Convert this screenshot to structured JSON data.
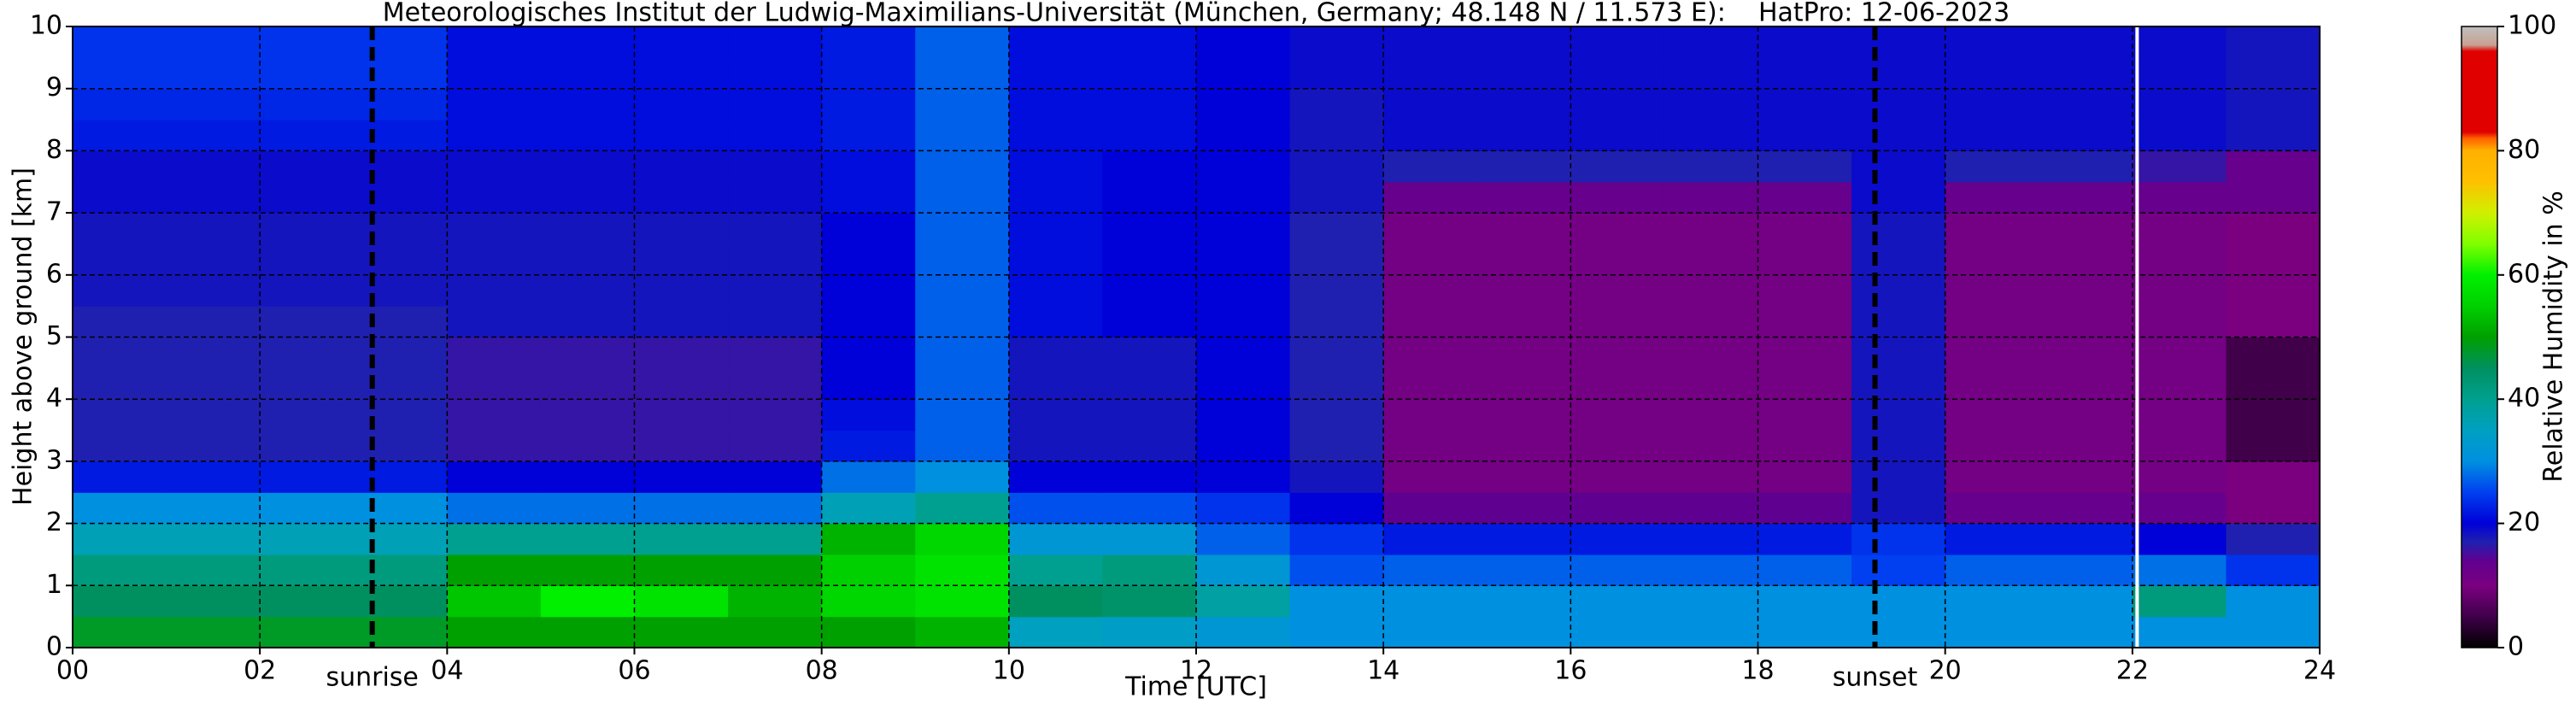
{
  "chart_data": {
    "type": "heatmap",
    "title": "Meteorologisches Institut der Ludwig-Maximilians-Universität (München, Germany; 48.148 N / 11.573 E):    HatPro: 12-06-2023",
    "xlabel": "Time [UTC]",
    "ylabel": "Height above ground [km]",
    "colorbar_label": "Relative Humidity in %",
    "x_edges": [
      0,
      1,
      2,
      3,
      4,
      5,
      6,
      7,
      8,
      9,
      10,
      11,
      12,
      13,
      14,
      15,
      16,
      17,
      18,
      19,
      20,
      21,
      22,
      23,
      24
    ],
    "y_edges": [
      0,
      0.5,
      1,
      1.5,
      2,
      2.5,
      3,
      3.5,
      4,
      4.5,
      5,
      5.5,
      6,
      6.5,
      7,
      7.5,
      8,
      8.5,
      9,
      9.5,
      10
    ],
    "z": [
      [
        48,
        48,
        48,
        48,
        50,
        50,
        50,
        50,
        50,
        52,
        35,
        34,
        32,
        30,
        30,
        30,
        30,
        30,
        30,
        30,
        30,
        30,
        30,
        30
      ],
      [
        45,
        45,
        45,
        45,
        54,
        60,
        58,
        52,
        56,
        58,
        45,
        44,
        38,
        30,
        30,
        30,
        30,
        30,
        30,
        30,
        30,
        30,
        42,
        30
      ],
      [
        42,
        42,
        42,
        42,
        50,
        50,
        50,
        50,
        55,
        58,
        40,
        42,
        32,
        26,
        27,
        27,
        27,
        27,
        27,
        25,
        27,
        27,
        28,
        24
      ],
      [
        36,
        36,
        36,
        36,
        40,
        40,
        40,
        40,
        52,
        56,
        32,
        32,
        27,
        24,
        22,
        22,
        22,
        22,
        22,
        24,
        22,
        22,
        20,
        17
      ],
      [
        30,
        30,
        30,
        30,
        28,
        28,
        28,
        28,
        36,
        40,
        26,
        26,
        24,
        20,
        14,
        14,
        14,
        14,
        14,
        18,
        13,
        13,
        13,
        10
      ],
      [
        22,
        22,
        22,
        22,
        20,
        20,
        20,
        20,
        28,
        30,
        20,
        20,
        20,
        18,
        11,
        11,
        11,
        11,
        11,
        18,
        11,
        11,
        11,
        10
      ],
      [
        17,
        17,
        17,
        17,
        16,
        16,
        16,
        16,
        22,
        27,
        18,
        18,
        20,
        17,
        11,
        11,
        11,
        11,
        11,
        18,
        11,
        11,
        11,
        5
      ],
      [
        17,
        17,
        17,
        17,
        16,
        16,
        16,
        16,
        21,
        27,
        18,
        18,
        20,
        17,
        11,
        11,
        11,
        11,
        11,
        18,
        11,
        11,
        11,
        5
      ],
      [
        17,
        17,
        17,
        17,
        16,
        16,
        16,
        16,
        20,
        27,
        18,
        18,
        20,
        17,
        11,
        11,
        11,
        11,
        11,
        18,
        11,
        11,
        11,
        5
      ],
      [
        17,
        17,
        17,
        17,
        16,
        16,
        16,
        16,
        20,
        27,
        18,
        18,
        20,
        17,
        11,
        11,
        11,
        11,
        11,
        18,
        11,
        11,
        11,
        5
      ],
      [
        17,
        17,
        17,
        17,
        18,
        18,
        18,
        18,
        20,
        27,
        21,
        20,
        20,
        17,
        11,
        11,
        11,
        11,
        11,
        18,
        11,
        11,
        11,
        10
      ],
      [
        18,
        18,
        18,
        18,
        18,
        18,
        18,
        18,
        20,
        27,
        21,
        20,
        20,
        17,
        11,
        11,
        11,
        11,
        11,
        18,
        11,
        11,
        11,
        10
      ],
      [
        18,
        18,
        18,
        18,
        18,
        18,
        18,
        18,
        20,
        27,
        21,
        20,
        20,
        17,
        11,
        11,
        11,
        11,
        11,
        18,
        11,
        11,
        11,
        10
      ],
      [
        18,
        18,
        18,
        18,
        18,
        18,
        18,
        18,
        20,
        27,
        21,
        20,
        20,
        17,
        11,
        11,
        11,
        11,
        11,
        18,
        11,
        11,
        11,
        10
      ],
      [
        19,
        19,
        19,
        19,
        19,
        19,
        19,
        19,
        21,
        27,
        21,
        20,
        20,
        18,
        13,
        13,
        13,
        13,
        13,
        19,
        13,
        13,
        13,
        13
      ],
      [
        19,
        19,
        19,
        19,
        19,
        19,
        19,
        19,
        21,
        27,
        21,
        20,
        20,
        18,
        17,
        17,
        17,
        17,
        17,
        19,
        17,
        17,
        16,
        13
      ],
      [
        22,
        22,
        22,
        22,
        21,
        21,
        21,
        21,
        22,
        27,
        21,
        21,
        20,
        18,
        19,
        19,
        19,
        19,
        19,
        19,
        19,
        19,
        19,
        18
      ],
      [
        23,
        23,
        23,
        23,
        21,
        21,
        21,
        21,
        22,
        27,
        21,
        21,
        20,
        18,
        19,
        19,
        19,
        19,
        19,
        19,
        19,
        19,
        19,
        18
      ],
      [
        24,
        24,
        24,
        24,
        21,
        21,
        21,
        21,
        22,
        27,
        21,
        21,
        20,
        19,
        19,
        19,
        19,
        19,
        19,
        19,
        19,
        19,
        19,
        18
      ],
      [
        24,
        24,
        24,
        24,
        21,
        21,
        21,
        21,
        22,
        27,
        21,
        21,
        20,
        19,
        19,
        19,
        19,
        19,
        19,
        19,
        19,
        19,
        19,
        18
      ]
    ],
    "xlim": [
      0,
      24
    ],
    "xticks": [
      {
        "value": 0,
        "label": "00"
      },
      {
        "value": 2,
        "label": "02"
      },
      {
        "value": 4,
        "label": "04"
      },
      {
        "value": 6,
        "label": "06"
      },
      {
        "value": 8,
        "label": "08"
      },
      10,
      12,
      14,
      16,
      18,
      20,
      22,
      24
    ],
    "ylim": [
      0,
      10
    ],
    "yticks": [
      0,
      1,
      2,
      3,
      4,
      5,
      6,
      7,
      8,
      9,
      10
    ],
    "clim": [
      0,
      100
    ],
    "cticks": [
      0,
      20,
      40,
      60,
      80,
      100
    ],
    "grid": true,
    "colorscale": [
      {
        "value": 0,
        "color": "#000000"
      },
      {
        "value": 5,
        "color": "#40004a"
      },
      {
        "value": 10,
        "color": "#7a0080"
      },
      {
        "value": 14,
        "color": "#600090"
      },
      {
        "value": 17,
        "color": "#2020b0"
      },
      {
        "value": 20,
        "color": "#0000d8"
      },
      {
        "value": 25,
        "color": "#0040f0"
      },
      {
        "value": 30,
        "color": "#0090e0"
      },
      {
        "value": 35,
        "color": "#00a0c0"
      },
      {
        "value": 40,
        "color": "#00a090"
      },
      {
        "value": 45,
        "color": "#009060"
      },
      {
        "value": 50,
        "color": "#00a000"
      },
      {
        "value": 55,
        "color": "#00d000"
      },
      {
        "value": 60,
        "color": "#00f000"
      },
      {
        "value": 65,
        "color": "#80ff00"
      },
      {
        "value": 70,
        "color": "#d0f000"
      },
      {
        "value": 75,
        "color": "#ffc000"
      },
      {
        "value": 80,
        "color": "#ffb000"
      },
      {
        "value": 82,
        "color": "#ff6000"
      },
      {
        "value": 83,
        "color": "#e00000"
      },
      {
        "value": 96,
        "color": "#e00000"
      },
      {
        "value": 97,
        "color": "#c8a090"
      },
      {
        "value": 100,
        "color": "#c0c0c0"
      }
    ],
    "annotations": [
      {
        "text": "sunrise",
        "x": 3.2
      },
      {
        "text": "sunset",
        "x": 19.25
      }
    ],
    "vlines": [
      {
        "x": 3.2,
        "color": "#000000",
        "style": "dashed"
      },
      {
        "x": 19.25,
        "color": "#000000",
        "style": "dashed"
      },
      {
        "x": 22.05,
        "color": "#ffffff",
        "style": "solid"
      }
    ]
  }
}
